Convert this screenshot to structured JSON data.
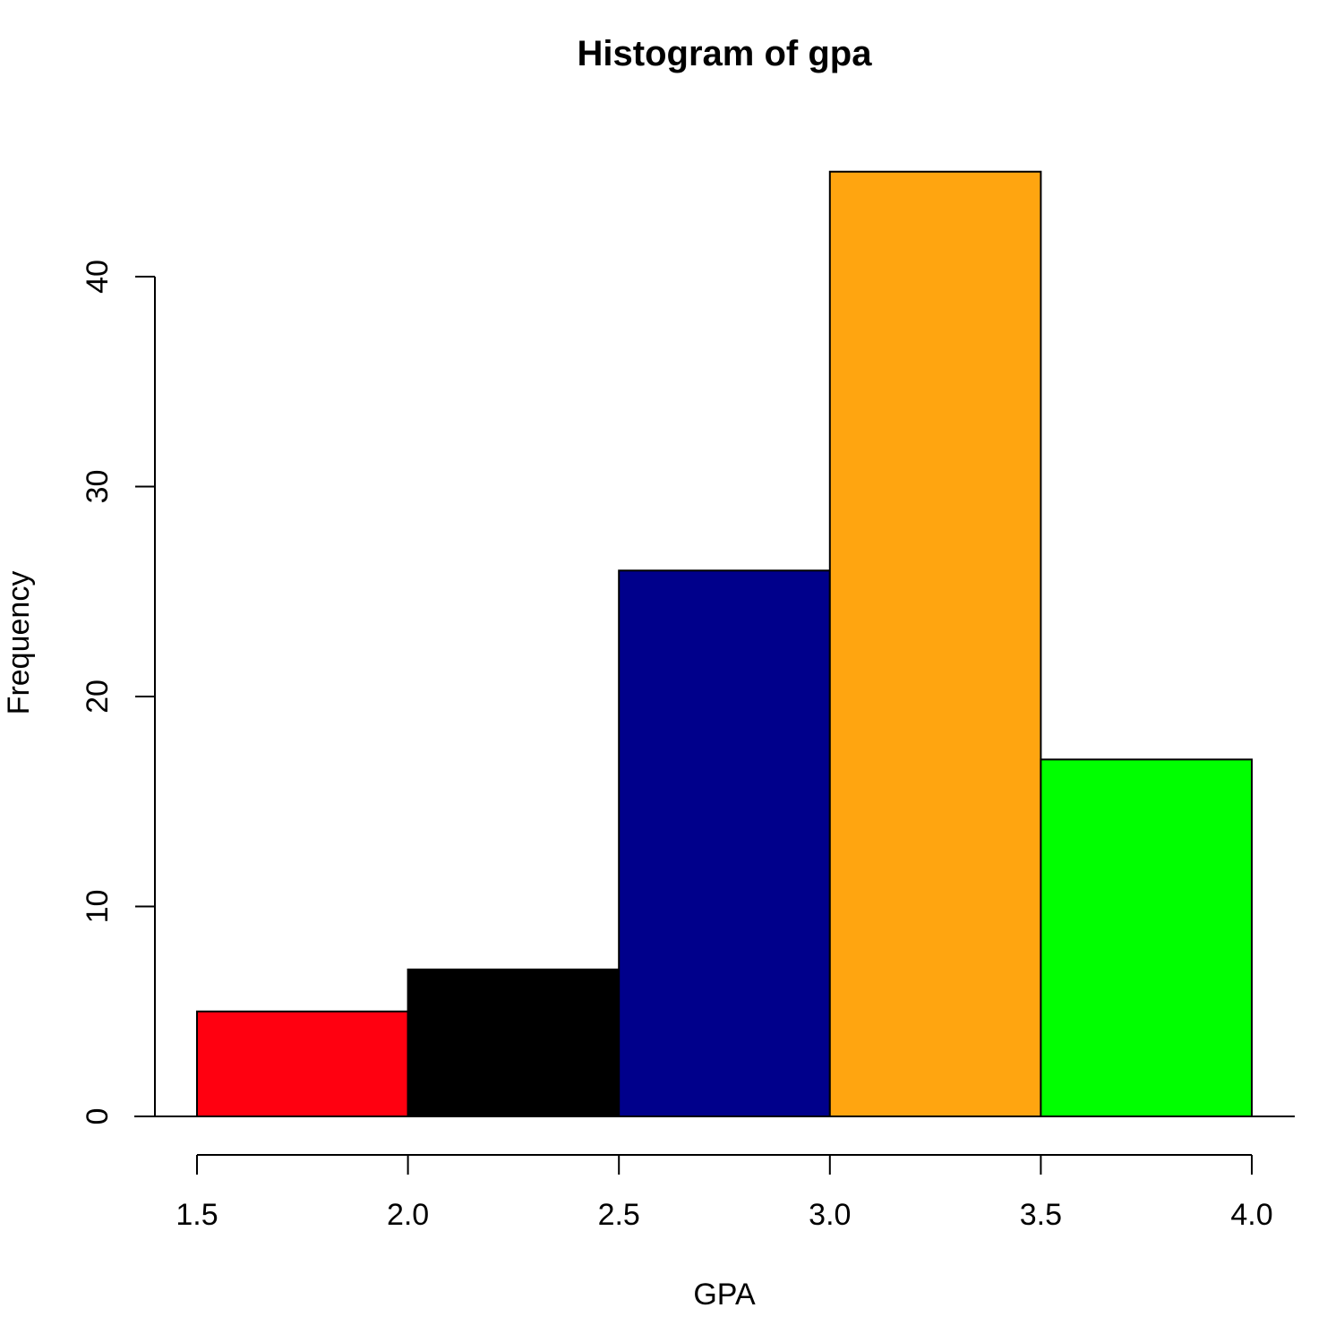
{
  "chart_data": {
    "type": "bar",
    "title": "Histogram of gpa",
    "xlabel": "GPA",
    "ylabel": "Frequency",
    "bins": [
      {
        "from": 1.5,
        "to": 2.0,
        "value": 5,
        "color": "#ff0010"
      },
      {
        "from": 2.0,
        "to": 2.5,
        "value": 7,
        "color": "#000000"
      },
      {
        "from": 2.5,
        "to": 3.0,
        "value": 26,
        "color": "#00008b"
      },
      {
        "from": 3.0,
        "to": 3.5,
        "value": 45,
        "color": "#ffa510"
      },
      {
        "from": 3.5,
        "to": 4.0,
        "value": 17,
        "color": "#00ff00"
      }
    ],
    "xticks": [
      "1.5",
      "2.0",
      "2.5",
      "3.0",
      "3.5",
      "4.0"
    ],
    "yticks": [
      "0",
      "10",
      "20",
      "30",
      "40"
    ],
    "xlim": [
      1.5,
      4.0
    ],
    "ylim": [
      0,
      45
    ],
    "grid": false,
    "legend": "none"
  }
}
